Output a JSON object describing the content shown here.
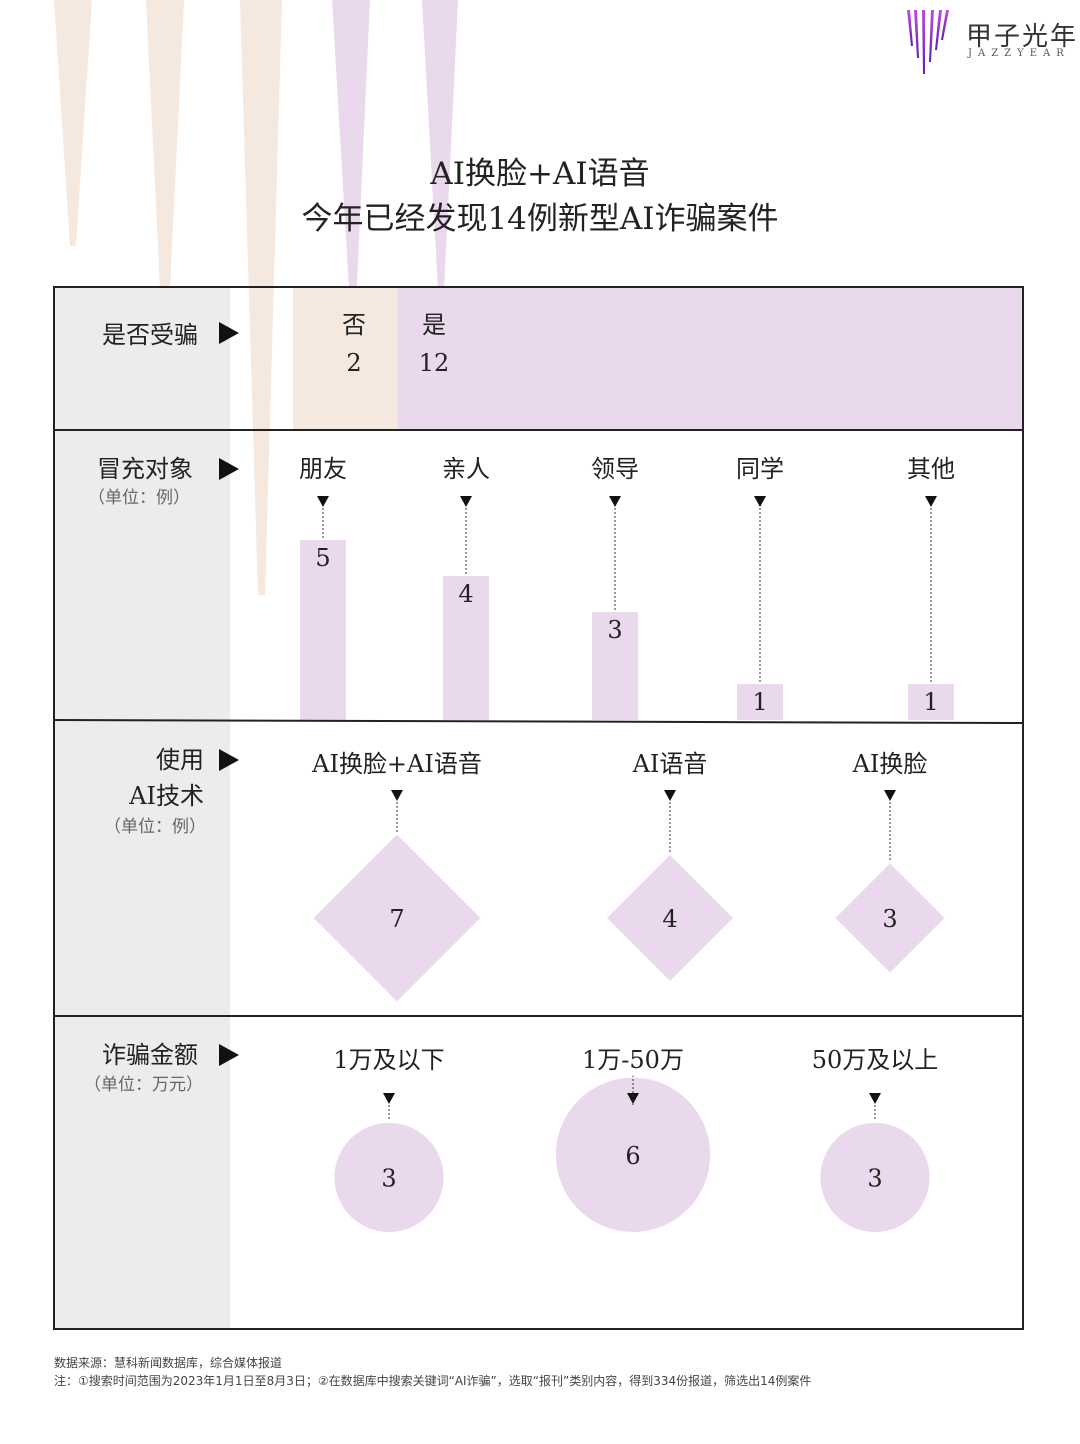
{
  "brand": {
    "name": "甲子光年",
    "name_en": "JAZZYEAR"
  },
  "colors": {
    "lavender": "#ead8ec",
    "peach": "#f5e8de",
    "gray_band": "#ececec",
    "border": "#222222"
  },
  "title": {
    "line1": "AI换脸+AI语音",
    "line2": "今年已经发现14例新型AI诈骗案件"
  },
  "chart_data": [
    {
      "type": "bar",
      "row_label": "是否受骗",
      "categories": [
        "否",
        "是"
      ],
      "values": [
        2,
        12
      ]
    },
    {
      "type": "bar",
      "row_label": "冒充对象",
      "unit": "（单位：例）",
      "categories": [
        "朋友",
        "亲人",
        "领导",
        "同学",
        "其他"
      ],
      "values": [
        5,
        4,
        3,
        1,
        1
      ]
    },
    {
      "type": "scatter",
      "row_label_line1": "使用",
      "row_label_line2": "AI技术",
      "unit": "（单位：例）",
      "categories": [
        "AI换脸+AI语音",
        "AI语音",
        "AI换脸"
      ],
      "values": [
        7,
        4,
        3
      ]
    },
    {
      "type": "scatter",
      "row_label": "诈骗金额",
      "unit": "（单位：万元）",
      "categories": [
        "1万及以下",
        "1万-50万",
        "50万及以上"
      ],
      "values": [
        3,
        6,
        3
      ]
    }
  ],
  "footer": {
    "source": "数据来源：慧科新闻数据库，综合媒体报道",
    "note": "注：①搜索时间范围为2023年1月1日至8月3日；②在数据库中搜索关键词“AI诈骗”，选取“报刊”类别内容，得到334份报道，筛选出14例案件"
  }
}
